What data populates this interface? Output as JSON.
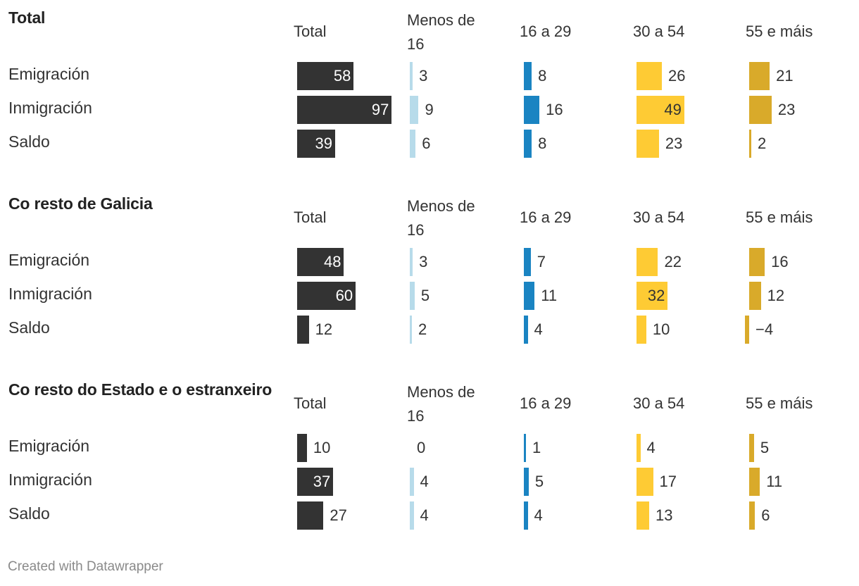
{
  "chart_data": {
    "type": "table",
    "columns": [
      "Total",
      "Menos de\n16",
      "16 a 29",
      "30 a 54",
      "55 e máis"
    ],
    "series_colors": [
      "#333333",
      "#b7dbea",
      "#1a84c2",
      "#fecb34",
      "#d9aa2a"
    ],
    "sections": [
      {
        "title": "Total",
        "rows": [
          {
            "label": "Emigración",
            "values": [
              58,
              3,
              8,
              26,
              21
            ]
          },
          {
            "label": "Inmigración",
            "values": [
              97,
              9,
              16,
              49,
              23
            ]
          },
          {
            "label": "Saldo",
            "values": [
              39,
              6,
              8,
              23,
              2
            ]
          }
        ]
      },
      {
        "title": "Co resto de Galicia",
        "rows": [
          {
            "label": "Emigración",
            "values": [
              48,
              3,
              7,
              22,
              16
            ]
          },
          {
            "label": "Inmigración",
            "values": [
              60,
              5,
              11,
              32,
              12
            ]
          },
          {
            "label": "Saldo",
            "values": [
              12,
              2,
              4,
              10,
              -4
            ]
          }
        ]
      },
      {
        "title": "Co resto do Estado e o estranxeiro",
        "rows": [
          {
            "label": "Emigración",
            "values": [
              10,
              0,
              1,
              4,
              5
            ]
          },
          {
            "label": "Inmigración",
            "values": [
              37,
              4,
              5,
              17,
              11
            ]
          },
          {
            "label": "Saldo",
            "values": [
              27,
              4,
              4,
              13,
              6
            ]
          }
        ]
      }
    ]
  },
  "footer": "Created with Datawrapper"
}
